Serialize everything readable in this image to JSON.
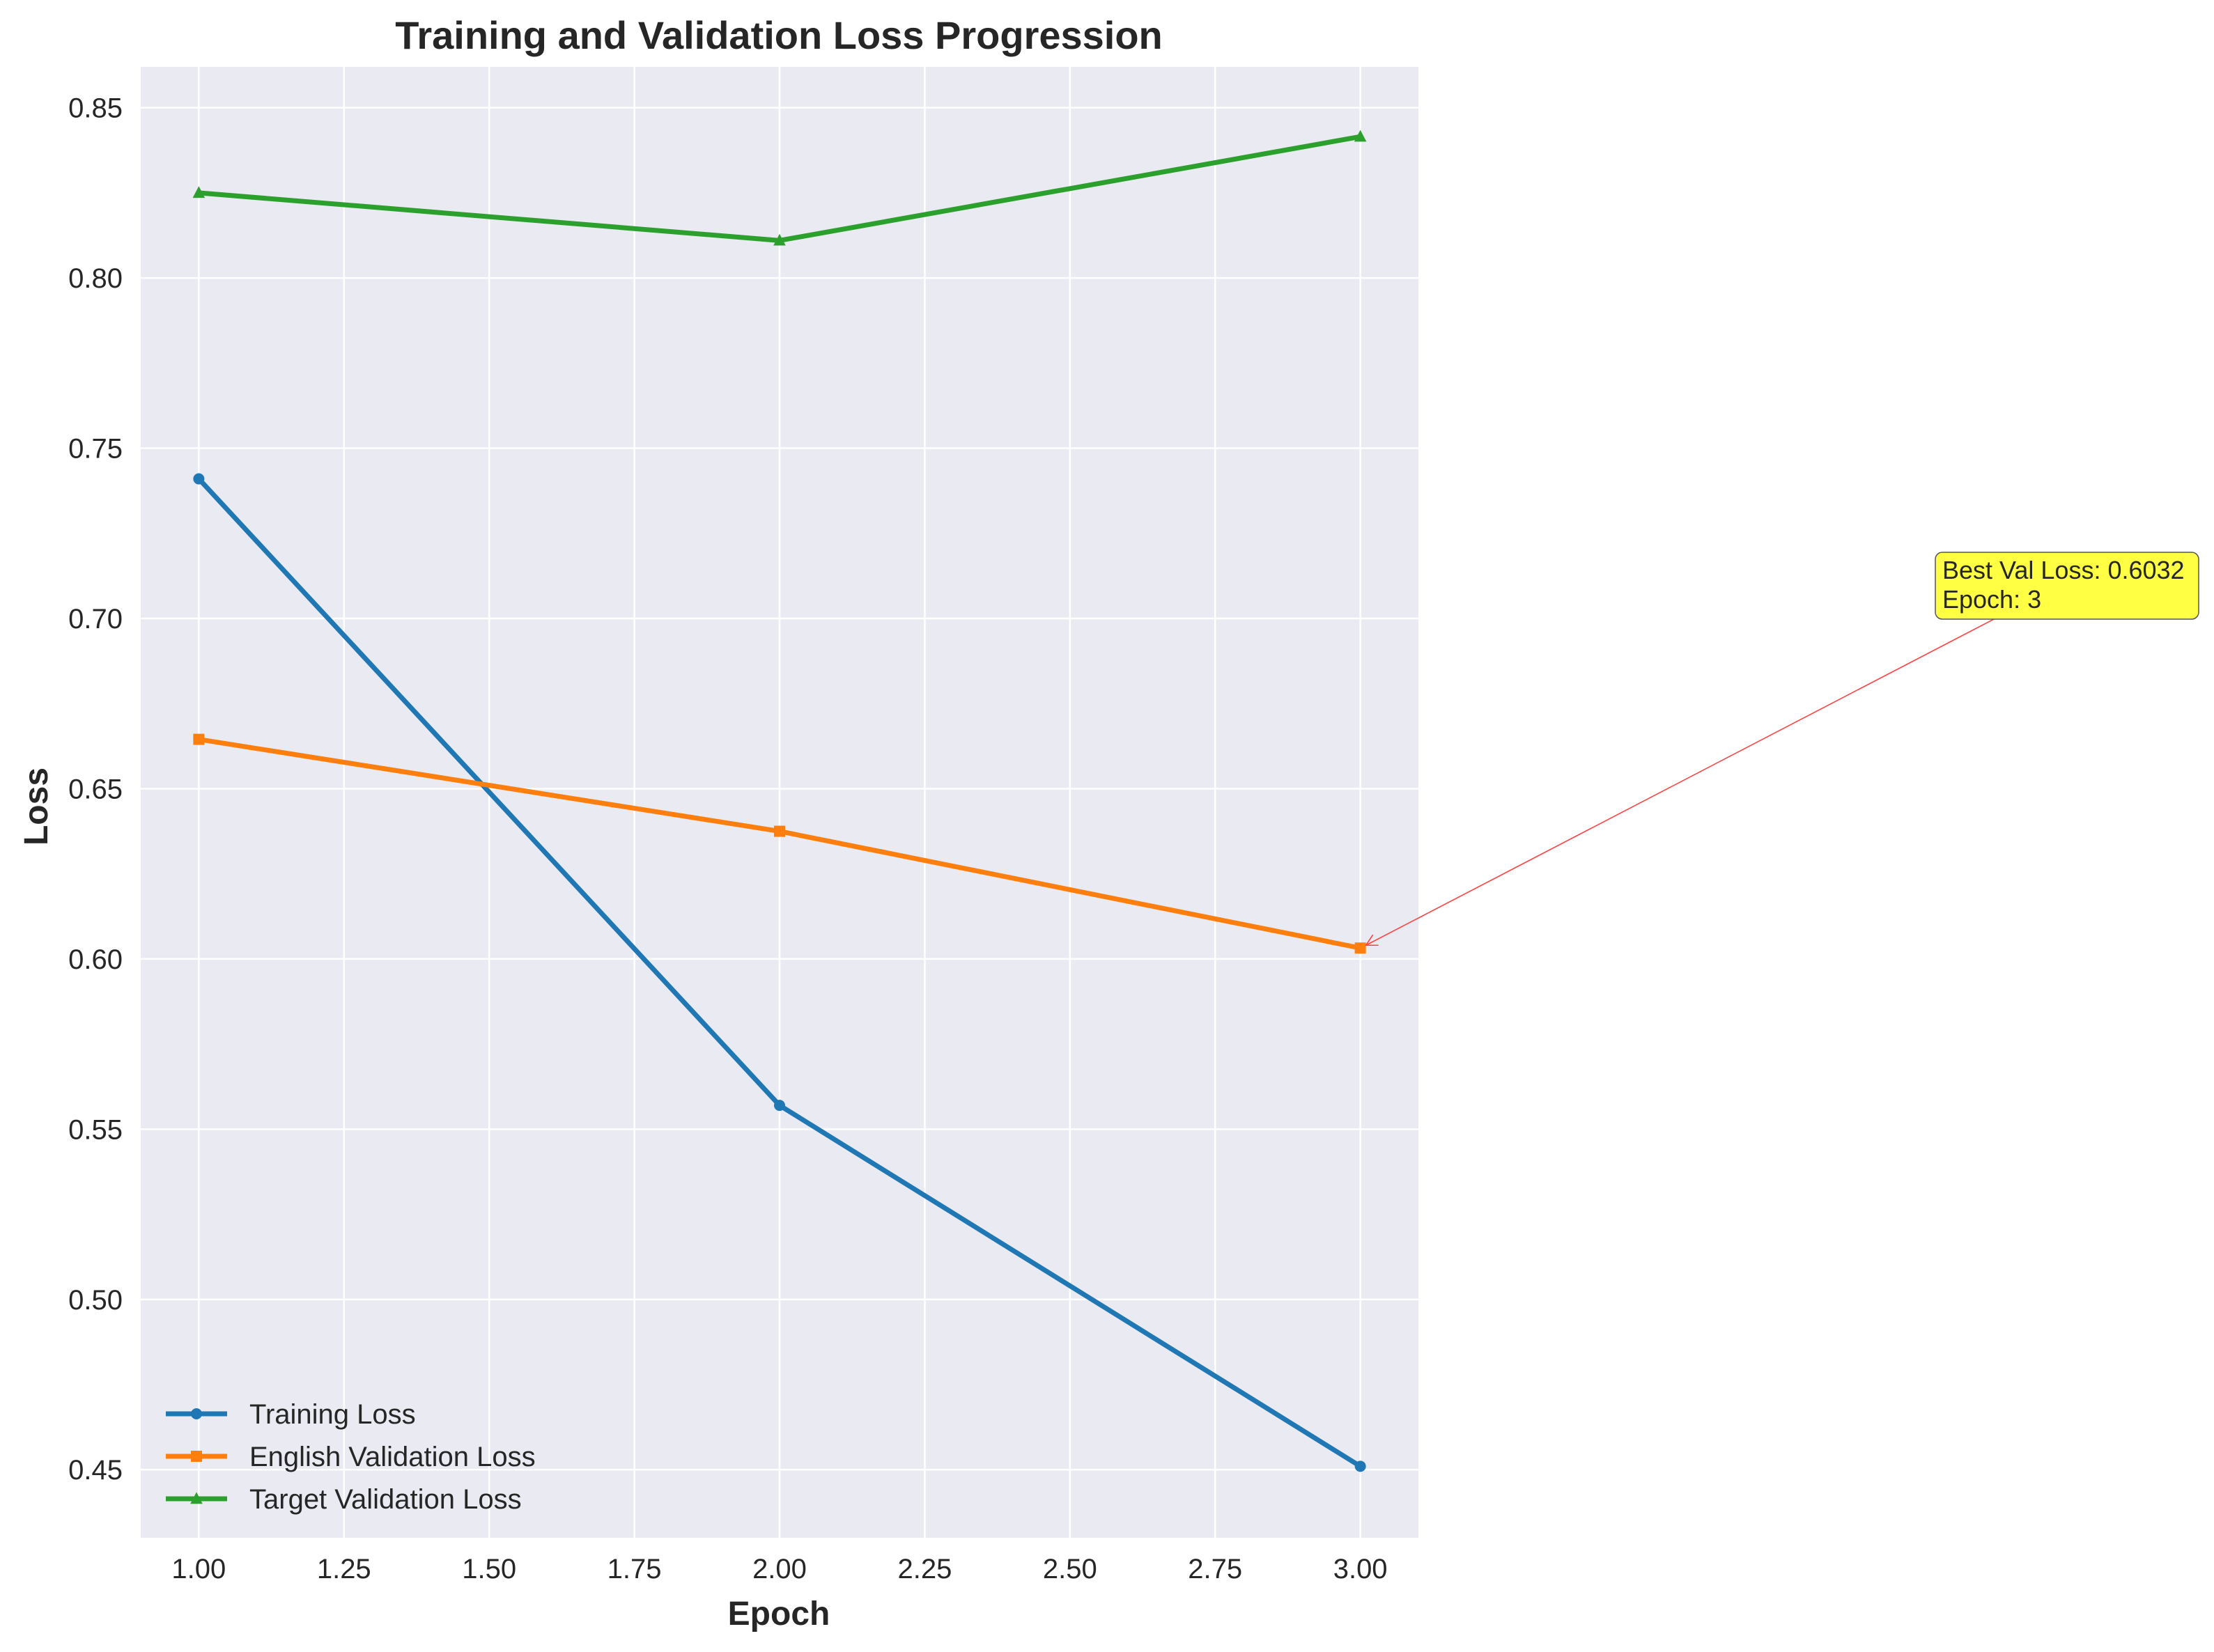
{
  "chart_data": {
    "type": "line",
    "title": "Training and Validation Loss Progression",
    "xlabel": "Epoch",
    "ylabel": "Loss",
    "x": [
      1,
      2,
      3
    ],
    "xlim": [
      0.9,
      3.1
    ],
    "ylim": [
      0.43,
      0.862
    ],
    "xticks": [
      1.0,
      1.25,
      1.5,
      1.75,
      2.0,
      2.25,
      2.5,
      2.75,
      3.0
    ],
    "xtick_labels": [
      "1.00",
      "1.25",
      "1.50",
      "1.75",
      "2.00",
      "2.25",
      "2.50",
      "2.75",
      "3.00"
    ],
    "yticks": [
      0.45,
      0.5,
      0.55,
      0.6,
      0.65,
      0.7,
      0.75,
      0.8,
      0.85
    ],
    "ytick_labels": [
      "0.45",
      "0.50",
      "0.55",
      "0.60",
      "0.65",
      "0.70",
      "0.75",
      "0.80",
      "0.85"
    ],
    "grid": true,
    "legend_position": "lower-left",
    "background": "#eaeaf2",
    "series": [
      {
        "name": "Training Loss",
        "values": [
          0.741,
          0.557,
          0.451
        ],
        "color": "#1f77b4",
        "marker": "circle"
      },
      {
        "name": "English Validation Loss",
        "values": [
          0.6645,
          0.6375,
          0.6032
        ],
        "color": "#ff7f0e",
        "marker": "square"
      },
      {
        "name": "Target Validation Loss",
        "values": [
          0.825,
          0.811,
          0.8415
        ],
        "color": "#2ca02c",
        "marker": "triangle"
      }
    ],
    "annotation": {
      "lines": [
        "Best Val Loss: 0.6032",
        "Epoch: 3"
      ],
      "point": {
        "x": 3,
        "y": 0.6032
      },
      "box_color": "#ffff44",
      "arrow_color": "#ff4444"
    }
  }
}
